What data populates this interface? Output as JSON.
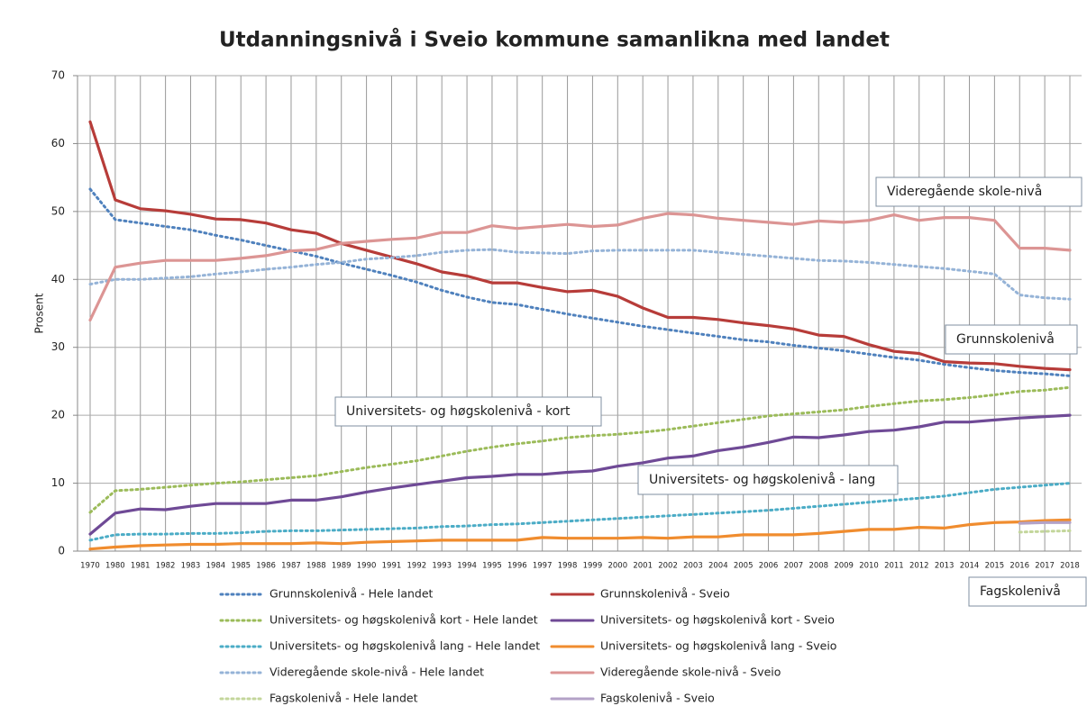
{
  "chart_data": {
    "type": "line",
    "title": "Utdanningsnivå i Sveio kommune samanlikna med landet",
    "ylabel": "Prosent",
    "categories": [
      "1970",
      "1980",
      "1981",
      "1982",
      "1983",
      "1984",
      "1985",
      "1986",
      "1987",
      "1988",
      "1989",
      "1990",
      "1991",
      "1992",
      "1993",
      "1994",
      "1995",
      "1996",
      "1997",
      "1998",
      "1999",
      "2000",
      "2001",
      "2002",
      "2003",
      "2004",
      "2005",
      "2006",
      "2007",
      "2008",
      "2009",
      "2010",
      "2011",
      "2012",
      "2013",
      "2014",
      "2015",
      "2016",
      "2017",
      "2018"
    ],
    "ylim": [
      0,
      70
    ],
    "yticks": [
      0,
      10,
      20,
      30,
      40,
      50,
      60,
      70
    ],
    "grid": true,
    "series": [
      {
        "name": "Grunnskolenivå - Hele landet",
        "color": "#4f81bd",
        "style": "dotted",
        "values": [
          53.3,
          48.8,
          48.3,
          47.8,
          47.3,
          46.5,
          45.8,
          45.0,
          44.2,
          43.4,
          42.4,
          41.5,
          40.6,
          39.6,
          38.4,
          37.4,
          36.6,
          36.3,
          35.6,
          34.9,
          34.3,
          33.7,
          33.1,
          32.6,
          32.1,
          31.6,
          31.1,
          30.8,
          30.3,
          29.9,
          29.5,
          29.0,
          28.5,
          28.1,
          27.5,
          27.0,
          26.6,
          26.3,
          26.1,
          25.8
        ]
      },
      {
        "name": "Grunnskolenivå - Sveio",
        "color": "#b73c39",
        "style": "solid",
        "values": [
          63.2,
          51.7,
          50.4,
          50.1,
          49.6,
          48.9,
          48.8,
          48.3,
          47.3,
          46.8,
          45.3,
          44.3,
          43.3,
          42.3,
          41.1,
          40.5,
          39.5,
          39.5,
          38.8,
          38.2,
          38.4,
          37.5,
          35.8,
          34.4,
          34.4,
          34.1,
          33.6,
          33.2,
          32.7,
          31.8,
          31.6,
          30.4,
          29.4,
          29.1,
          27.9,
          27.7,
          27.6,
          27.2,
          26.9,
          26.7
        ]
      },
      {
        "name": "Universitets- og høgskolenivå kort - Hele landet",
        "color": "#9bbb59",
        "style": "dotted",
        "values": [
          5.7,
          8.9,
          9.1,
          9.4,
          9.7,
          10.0,
          10.2,
          10.5,
          10.8,
          11.1,
          11.7,
          12.3,
          12.8,
          13.3,
          14.0,
          14.7,
          15.3,
          15.8,
          16.2,
          16.7,
          17.0,
          17.2,
          17.5,
          17.9,
          18.4,
          18.9,
          19.4,
          19.9,
          20.2,
          20.5,
          20.8,
          21.3,
          21.7,
          22.1,
          22.3,
          22.6,
          23.0,
          23.5,
          23.7,
          24.1
        ]
      },
      {
        "name": "Universitets- og høgskolenivå kort - Sveio",
        "color": "#6f4a96",
        "style": "solid",
        "values": [
          2.5,
          5.6,
          6.2,
          6.1,
          6.6,
          7.0,
          7.0,
          7.0,
          7.5,
          7.5,
          8.0,
          8.7,
          9.3,
          9.8,
          10.3,
          10.8,
          11.0,
          11.3,
          11.3,
          11.6,
          11.8,
          12.5,
          13.0,
          13.7,
          14.0,
          14.8,
          15.3,
          16.0,
          16.8,
          16.7,
          17.1,
          17.6,
          17.8,
          18.3,
          19.0,
          19.0,
          19.3,
          19.6,
          19.8,
          20.0
        ]
      },
      {
        "name": "Universitets- og høgskolenivå lang - Hele landet",
        "color": "#4bacc6",
        "style": "dotted",
        "values": [
          1.6,
          2.4,
          2.5,
          2.5,
          2.6,
          2.6,
          2.7,
          2.9,
          3.0,
          3.0,
          3.1,
          3.2,
          3.3,
          3.4,
          3.6,
          3.7,
          3.9,
          4.0,
          4.2,
          4.4,
          4.6,
          4.8,
          5.0,
          5.2,
          5.4,
          5.6,
          5.8,
          6.0,
          6.3,
          6.6,
          6.9,
          7.2,
          7.5,
          7.8,
          8.1,
          8.6,
          9.1,
          9.4,
          9.7,
          10.0
        ]
      },
      {
        "name": "Universitets- og høgskolenivå lang - Sveio",
        "color": "#f08c2e",
        "style": "solid",
        "values": [
          0.3,
          0.6,
          0.8,
          0.9,
          1.0,
          1.0,
          1.1,
          1.1,
          1.1,
          1.2,
          1.1,
          1.3,
          1.4,
          1.5,
          1.6,
          1.6,
          1.6,
          1.6,
          2.0,
          1.9,
          1.9,
          1.9,
          2.0,
          1.9,
          2.1,
          2.1,
          2.4,
          2.4,
          2.4,
          2.6,
          2.9,
          3.2,
          3.2,
          3.5,
          3.4,
          3.9,
          4.2,
          4.3,
          4.5,
          4.6
        ]
      },
      {
        "name": "Videregående skole-nivå - Hele landet",
        "color": "#95b3d7",
        "style": "dotted",
        "values": [
          39.3,
          40.0,
          40.0,
          40.2,
          40.4,
          40.8,
          41.1,
          41.5,
          41.8,
          42.2,
          42.5,
          43.0,
          43.2,
          43.5,
          44.0,
          44.3,
          44.4,
          44.0,
          43.9,
          43.8,
          44.2,
          44.3,
          44.3,
          44.3,
          44.3,
          44.0,
          43.7,
          43.4,
          43.1,
          42.8,
          42.7,
          42.5,
          42.2,
          41.9,
          41.6,
          41.2,
          40.8,
          37.7,
          37.3,
          37.1
        ]
      },
      {
        "name": "Videregående skole-nivå - Sveio",
        "color": "#dc9594",
        "style": "solid",
        "values": [
          34.0,
          41.8,
          42.4,
          42.8,
          42.8,
          42.8,
          43.1,
          43.5,
          44.2,
          44.4,
          45.3,
          45.6,
          45.9,
          46.1,
          46.9,
          46.9,
          47.9,
          47.5,
          47.8,
          48.1,
          47.8,
          48.0,
          49.0,
          49.7,
          49.5,
          49.0,
          48.7,
          48.4,
          48.1,
          48.6,
          48.4,
          48.7,
          49.5,
          48.7,
          49.1,
          49.1,
          48.7,
          44.6,
          44.6,
          44.3
        ]
      },
      {
        "name": "Fagskolenivå - Hele landet",
        "color": "#c3d69b",
        "style": "dotted",
        "values": [
          null,
          null,
          null,
          null,
          null,
          null,
          null,
          null,
          null,
          null,
          null,
          null,
          null,
          null,
          null,
          null,
          null,
          null,
          null,
          null,
          null,
          null,
          null,
          null,
          null,
          null,
          null,
          null,
          null,
          null,
          null,
          null,
          null,
          null,
          null,
          null,
          null,
          2.8,
          2.9,
          3.0
        ]
      },
      {
        "name": "Fagskolenivå - Sveio",
        "color": "#b3a2c7",
        "style": "solid",
        "values": [
          null,
          null,
          null,
          null,
          null,
          null,
          null,
          null,
          null,
          null,
          null,
          null,
          null,
          null,
          null,
          null,
          null,
          null,
          null,
          null,
          null,
          null,
          null,
          null,
          null,
          null,
          null,
          null,
          null,
          null,
          null,
          null,
          null,
          null,
          null,
          null,
          null,
          4.1,
          4.2,
          4.2
        ]
      }
    ],
    "annotations": [
      "Videregående skole-nivå",
      "Grunnskolenivå",
      "Universitets- og høgskolenivå - kort",
      "Universitets- og høgskolenivå - lang",
      "Fagskolenivå"
    ]
  }
}
